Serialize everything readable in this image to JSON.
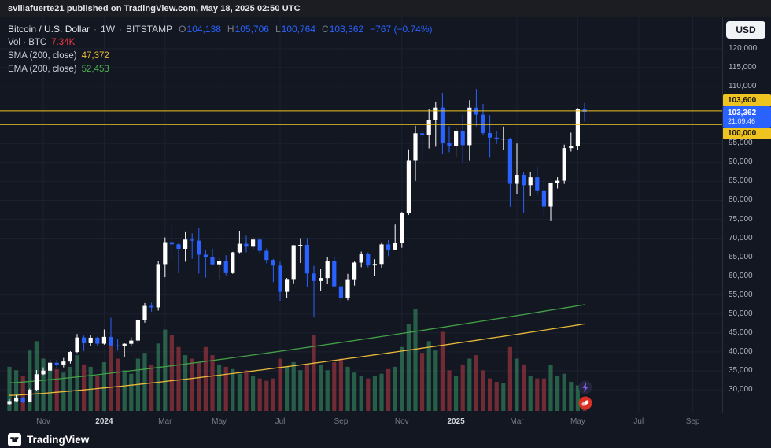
{
  "top_bar": {
    "text": "svillafuerte21 published on TradingView.com, May 18, 2025 02:50 UTC"
  },
  "legend": {
    "symbol": "Bitcoin / U.S. Dollar",
    "separator": "·",
    "interval": "1W",
    "exchange": "BITSTAMP",
    "o_label": "O",
    "o_value": "104,138",
    "h_label": "H",
    "h_value": "105,706",
    "l_label": "L",
    "l_value": "100,764",
    "c_label": "C",
    "c_value": "103,362",
    "change": "−767 (−0.74%)",
    "vol_label": "Vol · BTC",
    "vol_value": "7.34K",
    "sma_label": "SMA (200, close)",
    "sma_value": "47,372",
    "ema_label": "EMA (200, close)",
    "ema_value": "52,453"
  },
  "price_scale": {
    "currency_button": "USD",
    "badges": [
      {
        "text": "103,600",
        "bg": "#f0c420",
        "fg": "#15130a",
        "y": 105,
        "h": 15
      },
      {
        "text": "103,362",
        "sub": "21:09:46",
        "bg": "#2962ff",
        "fg": "#ffffff",
        "y": 126,
        "h": 27
      },
      {
        "text": "100,000",
        "bg": "#f0c420",
        "fg": "#15130a",
        "y": 147,
        "h": 15
      }
    ]
  },
  "time_axis": {
    "labels": [
      {
        "text": "Nov",
        "idx": 5,
        "year": false
      },
      {
        "text": "2024",
        "idx": 14,
        "year": true
      },
      {
        "text": "Mar",
        "idx": 23,
        "year": false
      },
      {
        "text": "May",
        "idx": 31,
        "year": false
      },
      {
        "text": "Jul",
        "idx": 40,
        "year": false
      },
      {
        "text": "Sep",
        "idx": 49,
        "year": false
      },
      {
        "text": "Nov",
        "idx": 58,
        "year": false
      },
      {
        "text": "2025",
        "idx": 66,
        "year": true
      },
      {
        "text": "Mar",
        "idx": 75,
        "year": false
      },
      {
        "text": "May",
        "idx": 84,
        "year": false
      },
      {
        "text": "Jul",
        "idx": 93,
        "year": false
      },
      {
        "text": "Sep",
        "idx": 101,
        "year": false
      }
    ]
  },
  "reactions": {
    "items": [
      {
        "name": "lightning"
      },
      {
        "name": "pill"
      }
    ]
  },
  "footer": {
    "brand": "TradingView"
  },
  "chart_data": {
    "type": "candlestick",
    "title": "Bitcoin / U.S. Dollar",
    "interval": "1W",
    "exchange": "BITSTAMP",
    "ylim": [
      30000,
      120000
    ],
    "yticks": [
      120000,
      115000,
      110000,
      105000,
      100000,
      95000,
      90000,
      85000,
      80000,
      75000,
      70000,
      65000,
      60000,
      55000,
      50000,
      45000,
      40000,
      35000,
      30000
    ],
    "current": {
      "open": 104138,
      "high": 105706,
      "low": 100764,
      "close": 103362,
      "change": -767,
      "change_pct": -0.74,
      "volume_kbtc": 7.34,
      "countdown": "21:09:46"
    },
    "horizontal_lines": [
      {
        "price": 103600,
        "color": "#f0c420"
      },
      {
        "price": 100000,
        "color": "#f0c420"
      }
    ],
    "sma": {
      "label": "SMA (200, close)",
      "value": 47372,
      "start": 28500,
      "end": 47372,
      "curve": 1.25,
      "color": "#e8b93a"
    },
    "ema": {
      "label": "EMA (200, close)",
      "value": 52453,
      "start": 31800,
      "end": 52453,
      "curve": 1.2,
      "color": "#43a047"
    },
    "colors": {
      "up": "#ffffff",
      "down": "#2962ff",
      "vol_up": "rgba(60,166,110,0.5)",
      "vol_down": "rgba(192,60,70,0.55)",
      "grid": "#1c2130"
    },
    "candles_format": "[open, high, low, close, volume_kBTC] weekly",
    "candles": [
      [
        26200,
        27500,
        26000,
        27000,
        38
      ],
      [
        27000,
        28600,
        26900,
        27920,
        35
      ],
      [
        27920,
        28100,
        26500,
        26860,
        30
      ],
      [
        26860,
        30300,
        26750,
        29990,
        52
      ],
      [
        29990,
        35200,
        29800,
        34090,
        60
      ],
      [
        34090,
        35900,
        33900,
        35050,
        45
      ],
      [
        35050,
        38000,
        34600,
        37130,
        40
      ],
      [
        37130,
        37900,
        35600,
        36570,
        36
      ],
      [
        36570,
        38400,
        35900,
        37450,
        33
      ],
      [
        37450,
        40200,
        36900,
        39970,
        38
      ],
      [
        39970,
        44700,
        39700,
        43790,
        48
      ],
      [
        43790,
        44300,
        40200,
        42280,
        40
      ],
      [
        42280,
        44400,
        41500,
        43730,
        38
      ],
      [
        43730,
        44000,
        41600,
        42150,
        30
      ],
      [
        42150,
        45900,
        41900,
        43950,
        42
      ],
      [
        43950,
        49000,
        41500,
        41700,
        62
      ],
      [
        41700,
        43400,
        40300,
        41580,
        45
      ],
      [
        41580,
        42250,
        38550,
        42120,
        35
      ],
      [
        42120,
        43800,
        41400,
        42970,
        32
      ],
      [
        42970,
        48600,
        42300,
        48290,
        45
      ],
      [
        48290,
        52900,
        47700,
        52120,
        50
      ],
      [
        52120,
        52990,
        50600,
        51730,
        40
      ],
      [
        51730,
        64000,
        50900,
        63170,
        58
      ],
      [
        63170,
        70200,
        59700,
        68960,
        70
      ],
      [
        68960,
        73800,
        64500,
        68390,
        65
      ],
      [
        68390,
        68900,
        60800,
        67210,
        55
      ],
      [
        67210,
        71600,
        63800,
        69640,
        48
      ],
      [
        69640,
        71300,
        64550,
        69360,
        45
      ],
      [
        69360,
        72800,
        60660,
        65650,
        42
      ],
      [
        65650,
        67000,
        59600,
        64940,
        55
      ],
      [
        64940,
        67200,
        62780,
        63110,
        48
      ],
      [
        63110,
        64750,
        59100,
        64030,
        40
      ],
      [
        64030,
        65500,
        60200,
        60790,
        38
      ],
      [
        60790,
        66400,
        60600,
        66270,
        36
      ],
      [
        66270,
        71950,
        66050,
        68530,
        32
      ],
      [
        68530,
        70650,
        66300,
        67760,
        35
      ],
      [
        67760,
        70300,
        67100,
        69640,
        30
      ],
      [
        69640,
        70100,
        66050,
        66670,
        28
      ],
      [
        66670,
        67300,
        63380,
        64260,
        26
      ],
      [
        64260,
        64550,
        58400,
        62780,
        28
      ],
      [
        62780,
        63800,
        53500,
        55850,
        45
      ],
      [
        55850,
        59500,
        54260,
        59230,
        38
      ],
      [
        59230,
        68200,
        57900,
        68150,
        42
      ],
      [
        68150,
        69990,
        63450,
        68250,
        35
      ],
      [
        68250,
        70000,
        57100,
        60700,
        40
      ],
      [
        60700,
        62700,
        49100,
        58710,
        65
      ],
      [
        58710,
        61800,
        56100,
        59490,
        40
      ],
      [
        59490,
        64950,
        57850,
        64090,
        35
      ],
      [
        64090,
        65200,
        57000,
        57300,
        42
      ],
      [
        57300,
        58500,
        52550,
        54160,
        45
      ],
      [
        54160,
        60600,
        53650,
        59180,
        38
      ],
      [
        59180,
        63850,
        57500,
        63580,
        33
      ],
      [
        63580,
        66480,
        62350,
        65880,
        30
      ],
      [
        65880,
        66250,
        62300,
        62820,
        28
      ],
      [
        62820,
        64460,
        60050,
        63200,
        30
      ],
      [
        63200,
        68950,
        62100,
        68370,
        32
      ],
      [
        68370,
        69500,
        65260,
        67010,
        36
      ],
      [
        67010,
        73600,
        66800,
        68740,
        38
      ],
      [
        68740,
        76950,
        67480,
        76680,
        55
      ],
      [
        76680,
        93450,
        76150,
        90590,
        75
      ],
      [
        90590,
        99660,
        85100,
        97700,
        88
      ],
      [
        97700,
        98700,
        90790,
        97280,
        50
      ],
      [
        97280,
        104100,
        93700,
        101240,
        60
      ],
      [
        101240,
        106090,
        94150,
        104480,
        52
      ],
      [
        104480,
        108360,
        92230,
        95100,
        68
      ],
      [
        95100,
        99550,
        92700,
        94300,
        35
      ],
      [
        94300,
        98980,
        91530,
        98220,
        30
      ],
      [
        98220,
        102700,
        89900,
        94560,
        40
      ],
      [
        94560,
        106430,
        90570,
        104460,
        45
      ],
      [
        104460,
        109358,
        99550,
        102620,
        48
      ],
      [
        102620,
        105450,
        97100,
        97750,
        35
      ],
      [
        97750,
        102500,
        91230,
        96560,
        28
      ],
      [
        96560,
        98340,
        94900,
        96120,
        25
      ],
      [
        96120,
        99470,
        93320,
        96270,
        24
      ],
      [
        96270,
        96500,
        78250,
        84350,
        55
      ],
      [
        84350,
        95000,
        81650,
        86740,
        45
      ],
      [
        86740,
        87500,
        76600,
        83980,
        40
      ],
      [
        83980,
        87470,
        81130,
        86090,
        30
      ],
      [
        86090,
        88770,
        81280,
        82630,
        28
      ],
      [
        82630,
        85500,
        76050,
        78320,
        28
      ],
      [
        78320,
        84700,
        74500,
        84500,
        40
      ],
      [
        84500,
        86100,
        83110,
        85170,
        30
      ],
      [
        85170,
        94700,
        84320,
        93780,
        32
      ],
      [
        93780,
        97880,
        92870,
        94310,
        25
      ],
      [
        94310,
        104320,
        93360,
        104110,
        22
      ],
      [
        104138,
        105706,
        100764,
        103362,
        7.34
      ]
    ]
  }
}
